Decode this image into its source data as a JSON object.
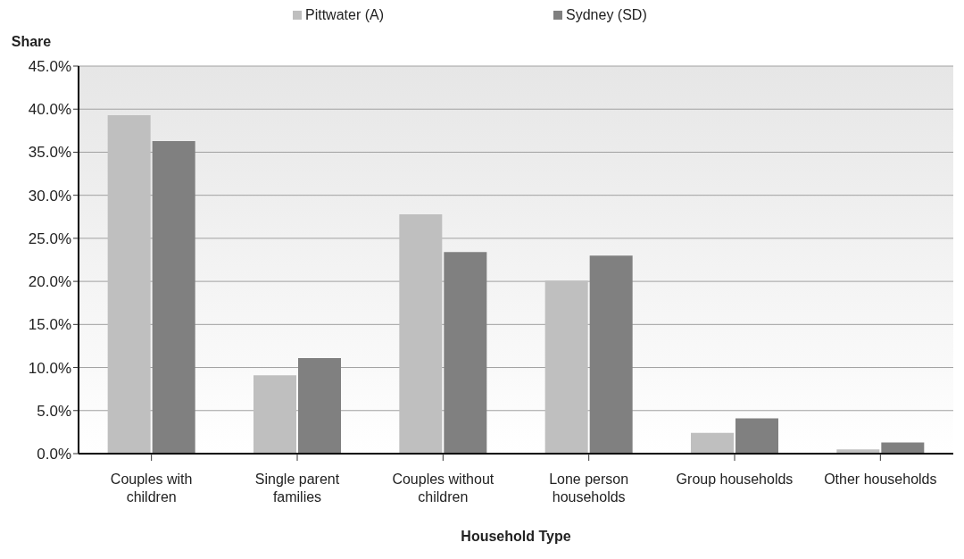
{
  "chart_data": {
    "type": "bar",
    "ylabel": "Share",
    "xlabel": "Household Type",
    "categories": [
      "Couples with children",
      "Single parent families",
      "Couples without children",
      "Lone person households",
      "Group households",
      "Other households"
    ],
    "series": [
      {
        "name": "Pittwater (A)",
        "color": "#bfbfbf",
        "values": [
          39.3,
          9.1,
          27.8,
          20.1,
          2.4,
          0.5
        ]
      },
      {
        "name": "Sydney (SD)",
        "color": "#808080",
        "values": [
          36.3,
          11.1,
          23.4,
          23.0,
          4.1,
          1.3
        ]
      }
    ],
    "ylim": [
      0,
      45
    ],
    "yticks": [
      {
        "value": 0,
        "label": "0.0%"
      },
      {
        "value": 5,
        "label": "5.0%"
      },
      {
        "value": 10,
        "label": "10.0%"
      },
      {
        "value": 15,
        "label": "15.0%"
      },
      {
        "value": 20,
        "label": "20.0%"
      },
      {
        "value": 25,
        "label": "25.0%"
      },
      {
        "value": 30,
        "label": "30.0%"
      },
      {
        "value": 35,
        "label": "35.0%"
      },
      {
        "value": 40,
        "label": "40.0%"
      },
      {
        "value": 45,
        "label": "45.0%"
      }
    ],
    "grid": "y",
    "legend": "top"
  }
}
